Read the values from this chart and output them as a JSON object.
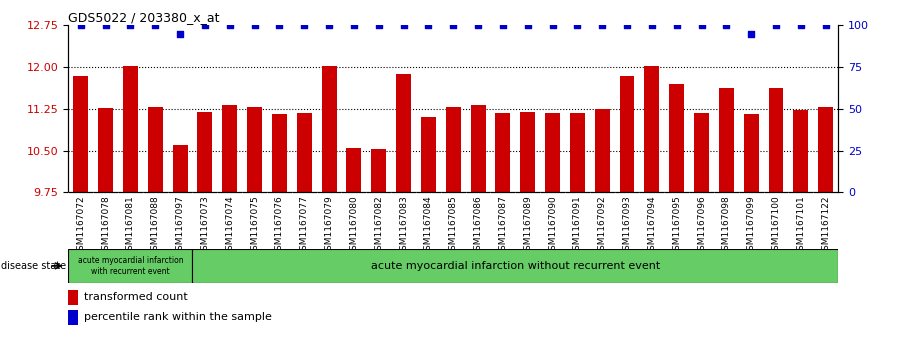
{
  "title": "GDS5022 / 203380_x_at",
  "samples": [
    "GSM1167072",
    "GSM1167078",
    "GSM1167081",
    "GSM1167088",
    "GSM1167097",
    "GSM1167073",
    "GSM1167074",
    "GSM1167075",
    "GSM1167076",
    "GSM1167077",
    "GSM1167079",
    "GSM1167080",
    "GSM1167082",
    "GSM1167083",
    "GSM1167084",
    "GSM1167085",
    "GSM1167086",
    "GSM1167087",
    "GSM1167089",
    "GSM1167090",
    "GSM1167091",
    "GSM1167092",
    "GSM1167093",
    "GSM1167094",
    "GSM1167095",
    "GSM1167096",
    "GSM1167098",
    "GSM1167099",
    "GSM1167100",
    "GSM1167101",
    "GSM1167122"
  ],
  "bar_values": [
    11.85,
    11.27,
    12.02,
    11.28,
    10.6,
    11.2,
    11.32,
    11.28,
    11.16,
    11.18,
    12.02,
    10.55,
    10.53,
    11.88,
    11.1,
    11.28,
    11.32,
    11.17,
    11.2,
    11.18,
    11.17,
    11.24,
    11.85,
    12.02,
    11.7,
    11.17,
    11.63,
    11.15,
    11.62,
    11.23,
    11.28
  ],
  "percentile_values": [
    100,
    100,
    100,
    100,
    95,
    100,
    100,
    100,
    100,
    100,
    100,
    100,
    100,
    100,
    100,
    100,
    100,
    100,
    100,
    100,
    100,
    100,
    100,
    100,
    100,
    100,
    100,
    95,
    100,
    100,
    100
  ],
  "bar_color": "#cc0000",
  "dot_color": "#0000cc",
  "ylim_left": [
    9.75,
    12.75
  ],
  "ylim_right": [
    0,
    100
  ],
  "yticks_left": [
    9.75,
    10.5,
    11.25,
    12.0,
    12.75
  ],
  "yticks_right": [
    0,
    25,
    50,
    75,
    100
  ],
  "group1_label": "acute myocardial infarction\nwith recurrent event",
  "group2_label": "acute myocardial infarction without recurrent event",
  "group1_count": 5,
  "disease_state_label": "disease state",
  "legend_bar_label": "transformed count",
  "legend_dot_label": "percentile rank within the sample",
  "group1_bg": "#66cc66",
  "group2_bg": "#66cc66",
  "bar_label_color": "#cc0000",
  "right_label_color": "#0000cc",
  "xtick_bg": "#bbbbbb",
  "fig_width": 9.11,
  "fig_height": 3.63
}
